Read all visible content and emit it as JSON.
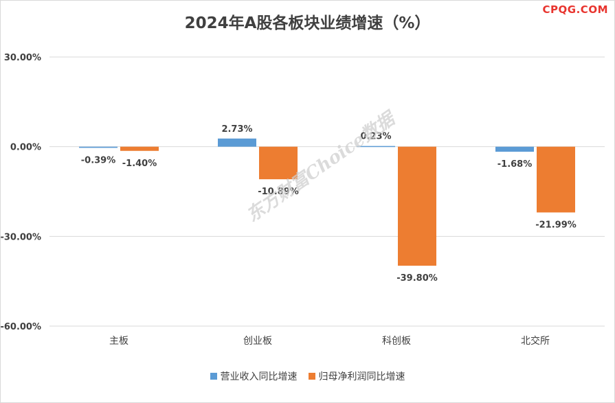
{
  "brand": "CPQG.COM",
  "watermark": "东方财富Choice数据",
  "chart_data": {
    "type": "bar",
    "title": "2024年A股各板块业绩增速（%）",
    "categories": [
      "主板",
      "创业板",
      "科创板",
      "北交所"
    ],
    "series": [
      {
        "name": "营业收入同比增速",
        "color": "#5b9bd5",
        "values": [
          -0.39,
          2.73,
          0.23,
          -1.68
        ],
        "labels": [
          "-0.39%",
          "2.73%",
          "0.23%",
          "-1.68%"
        ]
      },
      {
        "name": "归母净利润同比增速",
        "color": "#ed7d31",
        "values": [
          -1.4,
          -10.89,
          -39.8,
          -21.99
        ],
        "labels": [
          "-1.40%",
          "-10.89%",
          "-39.80%",
          "-21.99%"
        ]
      }
    ],
    "yticks": [
      "30.00%",
      "0.00%",
      "-30.00%",
      "-60.00%"
    ],
    "ytick_values": [
      30,
      0,
      -30,
      -60
    ],
    "ylim": [
      -60,
      30
    ],
    "grid": true,
    "legend_position": "bottom"
  }
}
